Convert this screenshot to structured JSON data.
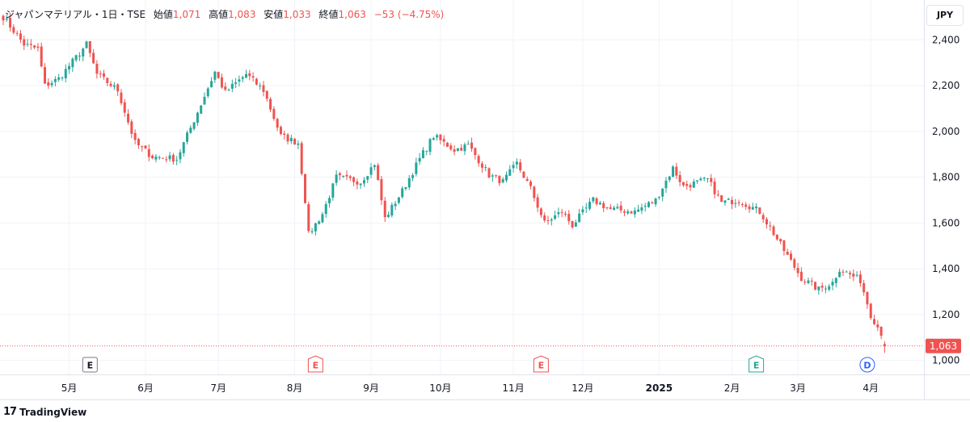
{
  "legend": {
    "symbol": "ジャパンマテリアル・1日・TSE",
    "open_label": "始値",
    "open_value": "1,071",
    "high_label": "高値",
    "high_value": "1,083",
    "low_label": "安値",
    "low_value": "1,033",
    "close_label": "終値",
    "close_value": "1,063",
    "change": "−53 (−4.75%)"
  },
  "currency_button": "JPY",
  "branding": {
    "logo_mark": "17",
    "name": "TradingView"
  },
  "price_label": "1,063",
  "colors": {
    "up": "#26a69a",
    "down": "#ef5350",
    "grid": "#f0f3fa",
    "axis_text": "#131722",
    "last_line": "#ef5350"
  },
  "chart_data": {
    "type": "candlestick",
    "title": "ジャパンマテリアル・1日・TSE",
    "currency": "JPY",
    "ylim": [
      960,
      2560
    ],
    "y_ticks": [
      1000,
      1200,
      1400,
      1600,
      1800,
      2000,
      2200,
      2400
    ],
    "y_tick_labels": [
      "1,000",
      "1,200",
      "1,400",
      "1,600",
      "1,800",
      "2,000",
      "2,200",
      "2,400"
    ],
    "x_tick_labels": [
      "5月",
      "6月",
      "7月",
      "8月",
      "9月",
      "10月",
      "11月",
      "12月",
      "2025",
      "2月",
      "3月",
      "4月"
    ],
    "x_tick_index": [
      19,
      41,
      62,
      84,
      106,
      126,
      147,
      167,
      189,
      210,
      229,
      250
    ],
    "events": [
      {
        "label": "E",
        "index": 25,
        "style": "gray"
      },
      {
        "label": "E",
        "index": 90,
        "style": "red"
      },
      {
        "label": "E",
        "index": 155,
        "style": "red"
      },
      {
        "label": "E",
        "index": 217,
        "style": "green"
      },
      {
        "label": "D",
        "index": 249,
        "style": "blue"
      }
    ],
    "last_price": 1063,
    "anchors": [
      [
        0,
        2500
      ],
      [
        6,
        2380
      ],
      [
        10,
        2360
      ],
      [
        12,
        2200
      ],
      [
        16,
        2230
      ],
      [
        24,
        2380
      ],
      [
        27,
        2250
      ],
      [
        33,
        2180
      ],
      [
        38,
        1950
      ],
      [
        43,
        1890
      ],
      [
        50,
        1880
      ],
      [
        55,
        2050
      ],
      [
        61,
        2260
      ],
      [
        64,
        2170
      ],
      [
        70,
        2250
      ],
      [
        75,
        2180
      ],
      [
        80,
        1980
      ],
      [
        85,
        1950
      ],
      [
        87,
        1700
      ],
      [
        88,
        1550
      ],
      [
        92,
        1640
      ],
      [
        96,
        1800
      ],
      [
        103,
        1780
      ],
      [
        107,
        1860
      ],
      [
        110,
        1620
      ],
      [
        115,
        1740
      ],
      [
        120,
        1880
      ],
      [
        124,
        1980
      ],
      [
        130,
        1920
      ],
      [
        134,
        1940
      ],
      [
        140,
        1810
      ],
      [
        144,
        1780
      ],
      [
        148,
        1860
      ],
      [
        152,
        1750
      ],
      [
        156,
        1600
      ],
      [
        161,
        1650
      ],
      [
        164,
        1590
      ],
      [
        170,
        1700
      ],
      [
        175,
        1660
      ],
      [
        182,
        1650
      ],
      [
        188,
        1700
      ],
      [
        193,
        1840
      ],
      [
        196,
        1760
      ],
      [
        203,
        1790
      ],
      [
        207,
        1690
      ],
      [
        212,
        1700
      ],
      [
        218,
        1650
      ],
      [
        221,
        1580
      ],
      [
        225,
        1480
      ],
      [
        230,
        1360
      ],
      [
        235,
        1310
      ],
      [
        239,
        1340
      ],
      [
        241,
        1400
      ],
      [
        247,
        1350
      ],
      [
        250,
        1200
      ],
      [
        253,
        1120
      ],
      [
        254,
        1063
      ]
    ],
    "ohlc_last": {
      "open": 1071,
      "high": 1083,
      "low": 1033,
      "close": 1063
    }
  }
}
